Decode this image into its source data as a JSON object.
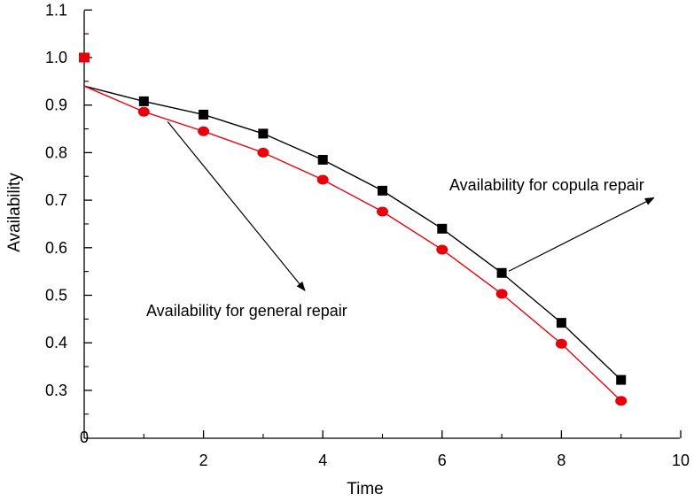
{
  "chart_data": {
    "type": "line",
    "xlabel": "Time",
    "ylabel": "Availability",
    "xlim": [
      0,
      10
    ],
    "ylim": [
      0.2,
      1.1
    ],
    "x_ticks": [
      "2",
      "4",
      "6",
      "8",
      "10"
    ],
    "y_ticks": [
      "0.3",
      "0.4",
      "0.5",
      "0.6",
      "0.7",
      "0.8",
      "0.9",
      "1.0",
      "1.1"
    ],
    "origin_label": "0",
    "grid": false,
    "series": [
      {
        "marker": "square",
        "color": "#000000",
        "x": [
          0,
          1,
          2,
          3,
          4,
          5,
          6,
          7,
          8,
          9
        ],
        "y": [
          0.94,
          0.908,
          0.88,
          0.84,
          0.785,
          0.72,
          0.64,
          0.547,
          0.442,
          0.322
        ]
      },
      {
        "marker": "circle",
        "color": "#e8000b",
        "x": [
          0,
          1,
          2,
          3,
          4,
          5,
          6,
          7,
          8,
          9
        ],
        "y": [
          0.94,
          0.886,
          0.845,
          0.8,
          0.743,
          0.676,
          0.596,
          0.503,
          0.398,
          0.278
        ]
      }
    ],
    "extra_points": [
      {
        "x": 0,
        "y": 1.0,
        "marker": "square",
        "color": "#e8000b"
      }
    ],
    "annotations": [
      {
        "text": "Availability for copula repair",
        "points_to": {
          "series": 0,
          "x": 7,
          "y": 0.547
        },
        "arrow_tip": {
          "x": 9.55,
          "y": 0.705
        }
      },
      {
        "text": "Availability for general repair",
        "points_to": {
          "series": 1,
          "x": 1.4,
          "y": 0.865
        },
        "arrow_tip": {
          "x": 3.7,
          "y": 0.51
        }
      }
    ]
  }
}
